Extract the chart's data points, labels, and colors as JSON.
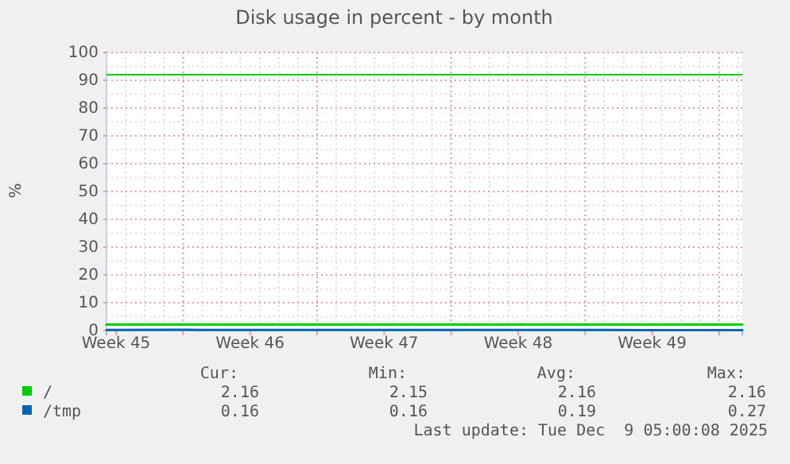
{
  "chart_data": {
    "type": "line",
    "title": "Disk usage in percent - by month",
    "ylabel": "%",
    "xlim": [
      "2025-11-06T00:00",
      "2025-12-09T05:00"
    ],
    "xticks": [
      {
        "value": "2025-11-06T12:00",
        "label": "Week 45"
      },
      {
        "value": "2025-11-10T00:00",
        "label": null
      },
      {
        "value": "2025-11-13T12:00",
        "label": "Week 46"
      },
      {
        "value": "2025-11-17T00:00",
        "label": null
      },
      {
        "value": "2025-11-20T12:00",
        "label": "Week 47"
      },
      {
        "value": "2025-11-24T00:00",
        "label": null
      },
      {
        "value": "2025-11-27T12:00",
        "label": "Week 48"
      },
      {
        "value": "2025-12-01T00:00",
        "label": null
      },
      {
        "value": "2025-12-04T12:00",
        "label": "Week 49"
      },
      {
        "value": "2025-12-08T00:00",
        "label": null
      }
    ],
    "ylim": [
      0,
      100
    ],
    "yticks": [
      0,
      10,
      20,
      30,
      40,
      50,
      60,
      70,
      80,
      90,
      100
    ],
    "grid": true,
    "legend": "bottom",
    "x": [
      "2025-11-06T00:00",
      "2025-11-10T00:00",
      "2025-11-14T00:00",
      "2025-11-18T00:00",
      "2025-11-22T00:00",
      "2025-11-26T00:00",
      "2025-11-30T00:00",
      "2025-12-04T00:00",
      "2025-12-09T05:00"
    ],
    "series": [
      {
        "name": "/",
        "color": "#00cc00",
        "values": [
          2.16,
          2.16,
          2.15,
          2.16,
          2.16,
          2.16,
          2.16,
          2.16,
          2.16
        ]
      },
      {
        "name": "/tmp",
        "color": "#0066b3",
        "values": [
          0.2,
          0.27,
          0.18,
          0.19,
          0.2,
          0.18,
          0.19,
          0.17,
          0.16
        ]
      }
    ],
    "ref_lines": [
      {
        "axis": "y",
        "value": 92,
        "color": "#00cc00"
      }
    ],
    "annotations": [
      "Cur:",
      "Min:",
      "Avg:",
      "Max:",
      "2.16",
      "2.15",
      "2.16",
      "2.16",
      "0.16",
      "0.16",
      "0.19",
      "0.27",
      "Last update: Tue Dec  9 05:00:08 2025"
    ]
  }
}
